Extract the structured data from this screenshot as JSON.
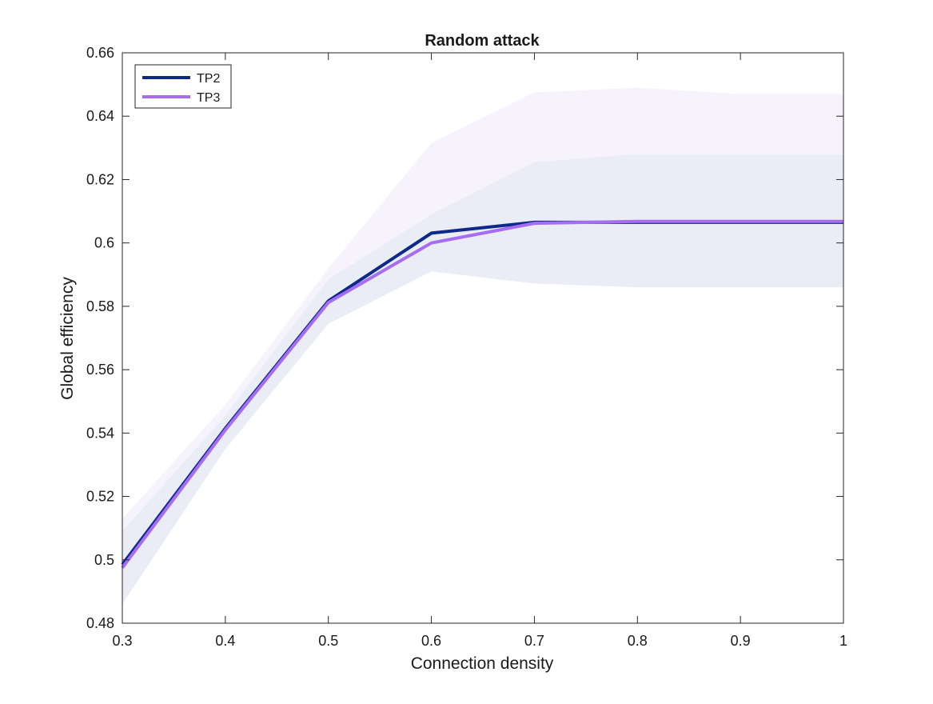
{
  "chart_data": {
    "type": "line",
    "title": "Random attack",
    "xlabel": "Connection density",
    "ylabel": "Global efficiency",
    "xlim": [
      0.3,
      1
    ],
    "ylim": [
      0.48,
      0.66
    ],
    "xticks": [
      0.3,
      0.4,
      0.5,
      0.6,
      0.7,
      0.8,
      0.9,
      1
    ],
    "xtick_labels": [
      "0.3",
      "0.4",
      "0.5",
      "0.6",
      "0.7",
      "0.8",
      "0.9",
      "1"
    ],
    "yticks": [
      0.48,
      0.5,
      0.52,
      0.54,
      0.56,
      0.58,
      0.6,
      0.62,
      0.64,
      0.66
    ],
    "ytick_labels": [
      "0.48",
      "0.5",
      "0.52",
      "0.54",
      "0.56",
      "0.58",
      "0.6",
      "0.62",
      "0.64",
      "0.66"
    ],
    "grid": false,
    "legend_position": "top-left",
    "x": [
      0.3,
      0.4,
      0.5,
      0.6,
      0.7,
      0.8,
      0.9,
      1.0
    ],
    "series": [
      {
        "name": "TP2",
        "color": "#0d2a8a",
        "band_color": "#e8eaf4",
        "values": [
          0.4985,
          0.5415,
          0.5817,
          0.6031,
          0.6065,
          0.6065,
          0.6065,
          0.6065
        ],
        "upper": [
          0.509,
          0.5455,
          0.5885,
          0.609,
          0.6255,
          0.628,
          0.628,
          0.628
        ],
        "lower": [
          0.486,
          0.535,
          0.5745,
          0.591,
          0.5872,
          0.586,
          0.586,
          0.586
        ]
      },
      {
        "name": "TP3",
        "color": "#a66cf2",
        "band_color": "#f4f1fc",
        "values": [
          0.4975,
          0.541,
          0.5812,
          0.6,
          0.6062,
          0.6068,
          0.6068,
          0.6068
        ],
        "upper": [
          0.513,
          0.549,
          0.592,
          0.6315,
          0.6475,
          0.649,
          0.647,
          0.647
        ],
        "lower": [
          0.4875,
          0.535,
          0.5745,
          0.5915,
          0.5915,
          0.5915,
          0.5915,
          0.5915
        ]
      }
    ]
  }
}
